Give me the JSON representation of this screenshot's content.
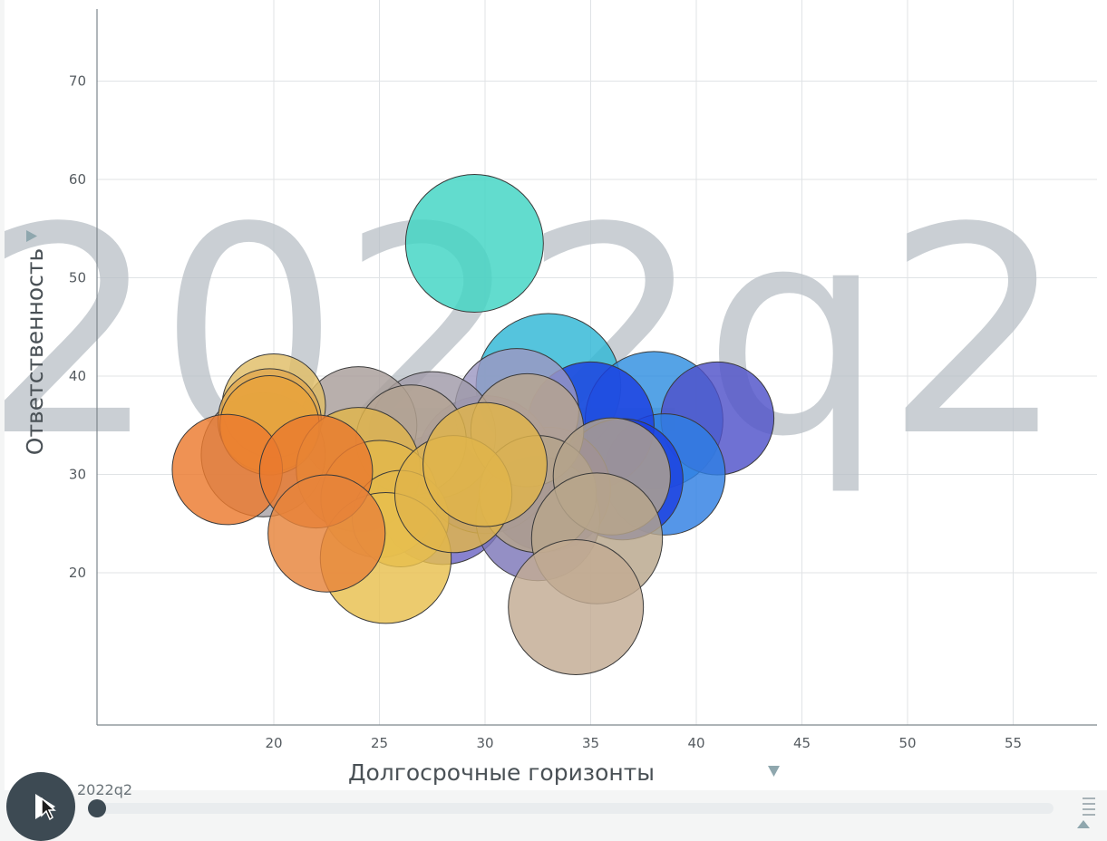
{
  "chart_data": {
    "type": "scatter",
    "variant": "bubble",
    "period": "2022q2",
    "xlabel": "Долгосрочные горизонты",
    "ylabel": "Ответственность",
    "xlim": [
      12,
      60
    ],
    "ylim": [
      6,
      80
    ],
    "xticks": [
      20,
      25,
      30,
      35,
      40,
      45,
      50,
      55
    ],
    "yticks": [
      20,
      30,
      40,
      50,
      60,
      70
    ],
    "grid": true,
    "points": [
      {
        "x": 29.5,
        "y": 53.5,
        "r": 1.0,
        "color": "#3fd4c3"
      },
      {
        "x": 33.0,
        "y": 39.0,
        "r": 1.05,
        "color": "#2fb7d6"
      },
      {
        "x": 38.0,
        "y": 35.5,
        "r": 1.0,
        "color": "#2f8fe0"
      },
      {
        "x": 41.0,
        "y": 35.7,
        "r": 0.82,
        "color": "#4f52c9"
      },
      {
        "x": 38.5,
        "y": 30.0,
        "r": 0.88,
        "color": "#2f7fe3"
      },
      {
        "x": 35.0,
        "y": 35.0,
        "r": 0.92,
        "color": "#1c3fe0"
      },
      {
        "x": 36.5,
        "y": 29.5,
        "r": 0.88,
        "color": "#1c3fe0"
      },
      {
        "x": 33.0,
        "y": 28.5,
        "r": 0.9,
        "color": "#4a44b8"
      },
      {
        "x": 28.0,
        "y": 27.5,
        "r": 0.95,
        "color": "#6e66c4"
      },
      {
        "x": 30.0,
        "y": 31.0,
        "r": 1.0,
        "color": "#6e66c4"
      },
      {
        "x": 31.5,
        "y": 36.5,
        "r": 0.9,
        "color": "#9c97c2"
      },
      {
        "x": 32.5,
        "y": 25.5,
        "r": 0.9,
        "color": "#7d76b8"
      },
      {
        "x": 27.5,
        "y": 34.0,
        "r": 0.92,
        "color": "#a09aa8"
      },
      {
        "x": 24.0,
        "y": 35.0,
        "r": 0.85,
        "color": "#a89e9a"
      },
      {
        "x": 19.5,
        "y": 32.0,
        "r": 0.9,
        "color": "#a8a2a6"
      },
      {
        "x": 26.5,
        "y": 33.5,
        "r": 0.8,
        "color": "#b5a493"
      },
      {
        "x": 32.0,
        "y": 34.5,
        "r": 0.82,
        "color": "#b8a58e"
      },
      {
        "x": 32.5,
        "y": 28.0,
        "r": 0.85,
        "color": "#b5a38b"
      },
      {
        "x": 36.0,
        "y": 29.8,
        "r": 0.85,
        "color": "#b5a38b"
      },
      {
        "x": 35.3,
        "y": 23.5,
        "r": 0.95,
        "color": "#b8a68b"
      },
      {
        "x": 34.3,
        "y": 16.5,
        "r": 0.98,
        "color": "#c2ab93"
      },
      {
        "x": 20.0,
        "y": 37.0,
        "r": 0.75,
        "color": "#e1bd66"
      },
      {
        "x": 19.8,
        "y": 35.5,
        "r": 0.75,
        "color": "#e0a84f"
      },
      {
        "x": 19.8,
        "y": 35.0,
        "r": 0.72,
        "color": "#e8a23a"
      },
      {
        "x": 24.0,
        "y": 30.5,
        "r": 0.9,
        "color": "#e0b54a"
      },
      {
        "x": 25.0,
        "y": 27.5,
        "r": 0.85,
        "color": "#e3b84a"
      },
      {
        "x": 26.0,
        "y": 25.5,
        "r": 0.7,
        "color": "#e3b84a"
      },
      {
        "x": 25.3,
        "y": 21.5,
        "r": 0.95,
        "color": "#e8c04e"
      },
      {
        "x": 28.5,
        "y": 28.0,
        "r": 0.85,
        "color": "#e0b44a"
      },
      {
        "x": 30.0,
        "y": 31.0,
        "r": 0.9,
        "color": "#e0b54a"
      },
      {
        "x": 17.8,
        "y": 30.5,
        "r": 0.8,
        "color": "#ec7a2e"
      },
      {
        "x": 22.0,
        "y": 30.3,
        "r": 0.82,
        "color": "#e97a2e"
      },
      {
        "x": 22.5,
        "y": 24.0,
        "r": 0.85,
        "color": "#e7843a"
      }
    ]
  },
  "timeline": {
    "label": "2022q2"
  },
  "icons": {
    "play": "play-icon",
    "cursor": "mouse-pointer-icon",
    "menu": "timeline-menu-icon"
  }
}
